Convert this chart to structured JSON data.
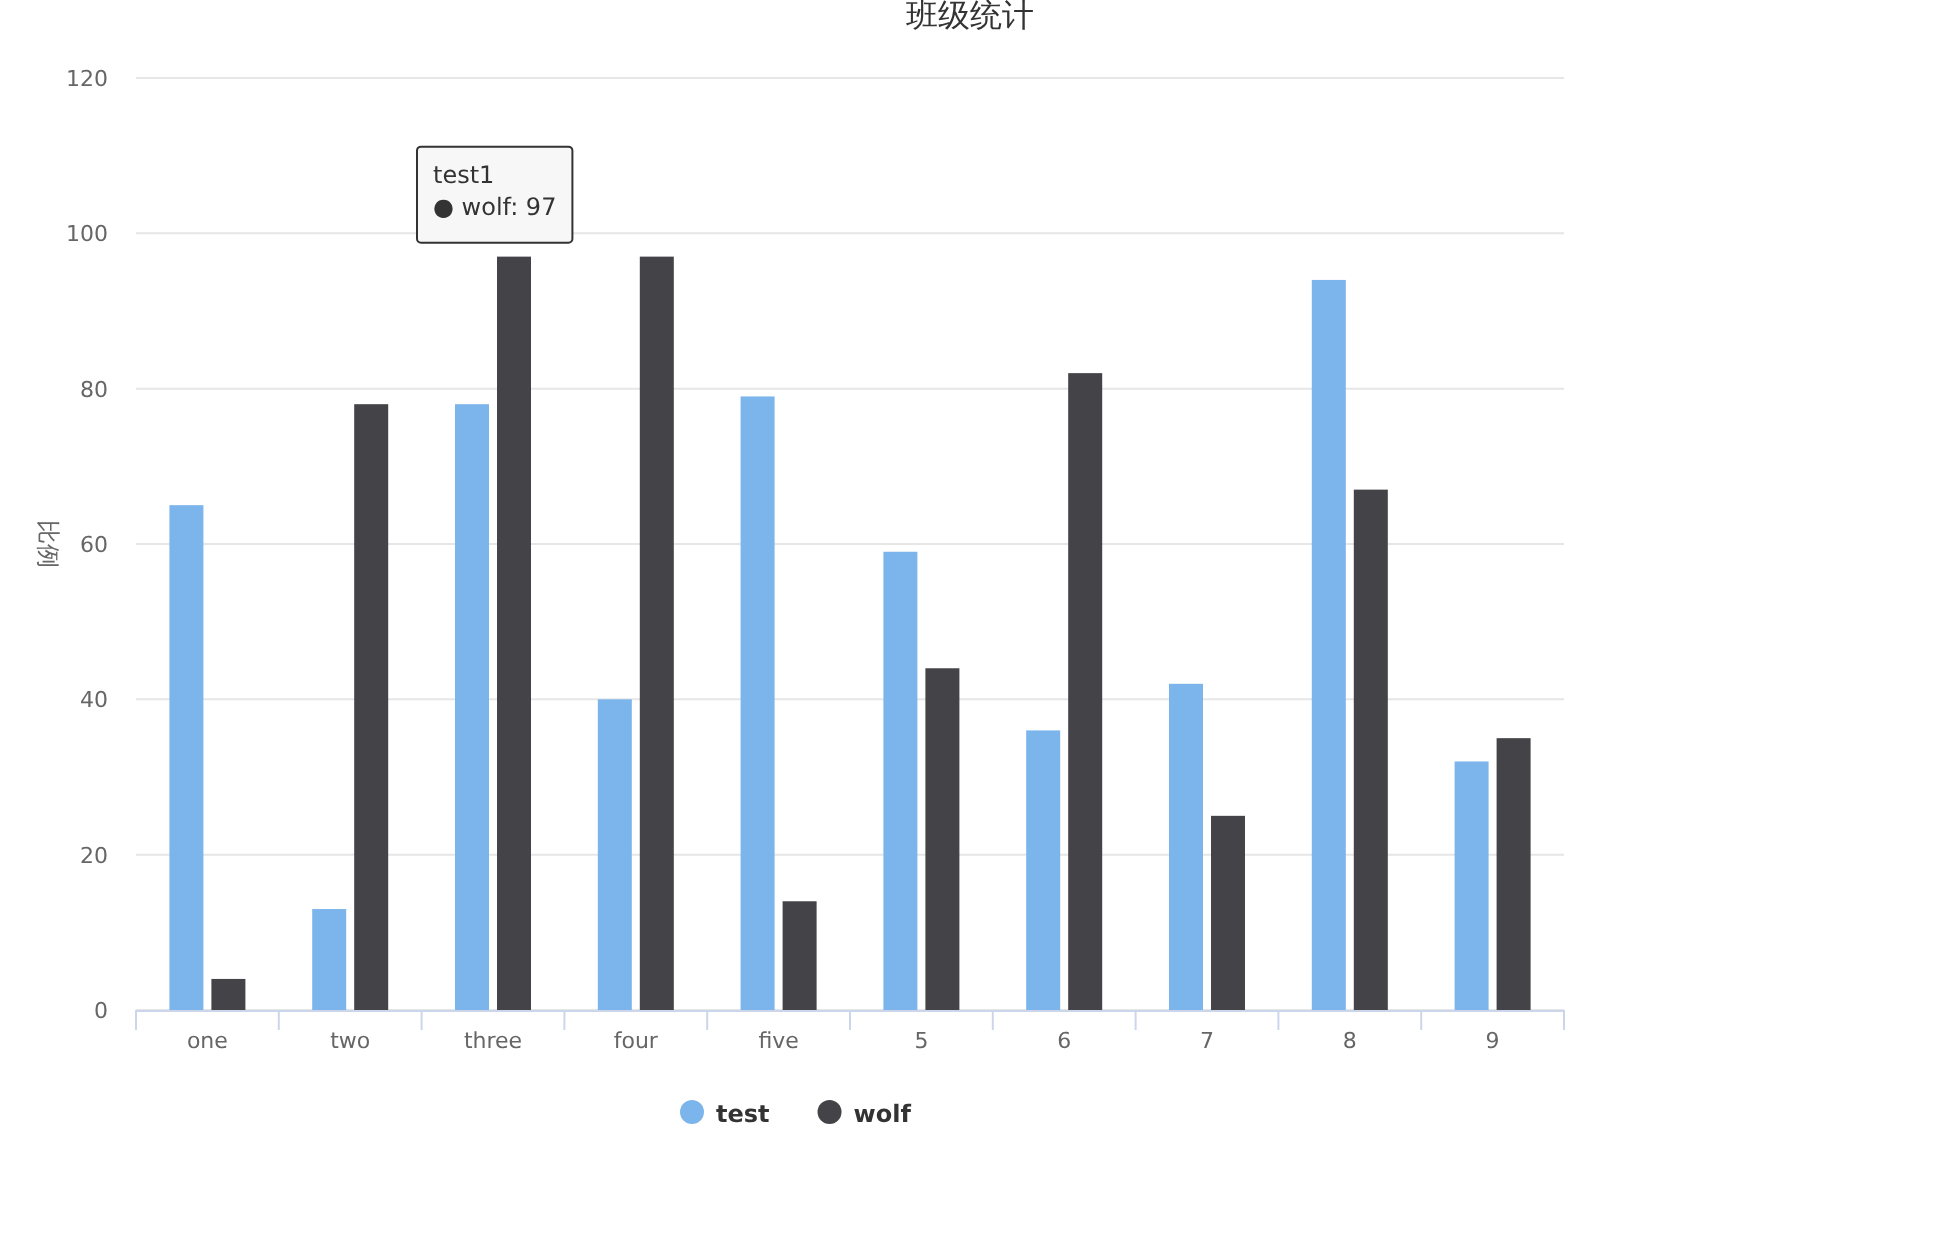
{
  "chart_data": {
    "type": "bar",
    "title": "班级统计",
    "ylabel": "比例",
    "categories": [
      "one",
      "two",
      "three",
      "four",
      "five",
      "5",
      "6",
      "7",
      "8",
      "9"
    ],
    "series": [
      {
        "name": "test",
        "color": "#7cb5ec",
        "values": [
          65,
          13,
          78,
          40,
          79,
          59,
          36,
          42,
          94,
          32
        ]
      },
      {
        "name": "wolf",
        "color": "#434348",
        "values": [
          4,
          78,
          97,
          97,
          14,
          44,
          82,
          25,
          67,
          35
        ]
      }
    ],
    "ylim": [
      0,
      120
    ],
    "yticks": [
      0,
      20,
      40,
      60,
      80,
      100,
      120
    ],
    "grid": "y",
    "legend": "bottom",
    "annotations": [
      {
        "text": "test1\n● wolf: 97",
        "x": "three",
        "y": 97
      }
    ]
  }
}
